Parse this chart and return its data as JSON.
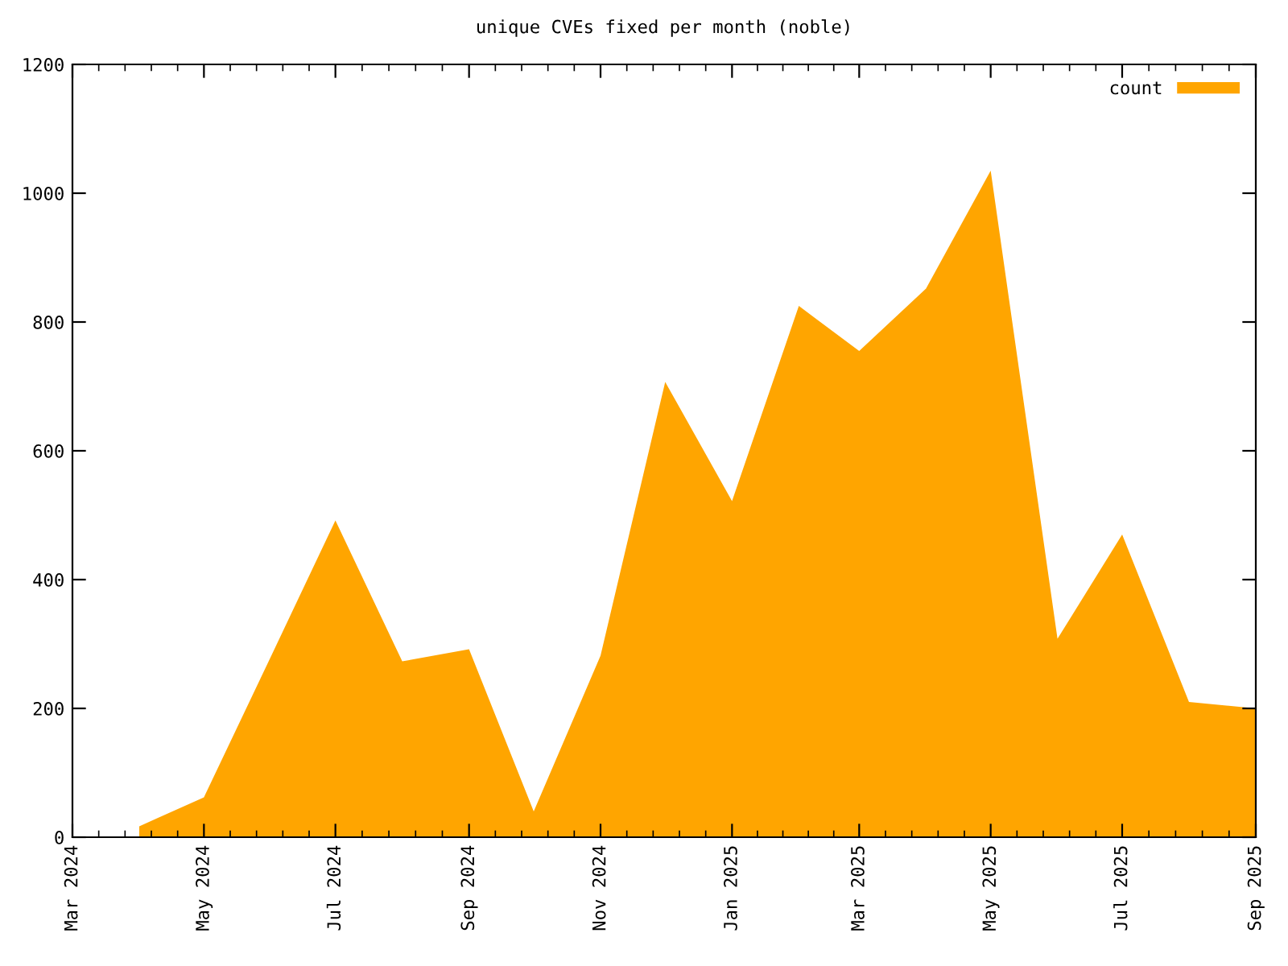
{
  "chart_data": {
    "type": "area",
    "title": "unique CVEs fixed per month (noble)",
    "x": [
      "2024-04",
      "2024-05",
      "2024-06",
      "2024-07",
      "2024-08",
      "2024-09",
      "2024-10",
      "2024-11",
      "2024-12",
      "2025-01",
      "2025-02",
      "2025-03",
      "2025-04",
      "2025-05",
      "2025-06",
      "2025-07",
      "2025-08",
      "2025-09"
    ],
    "series": [
      {
        "name": "count",
        "color": "#ffa500",
        "values": [
          17,
          62,
          280,
          492,
          273,
          292,
          40,
          282,
          707,
          522,
          825,
          755,
          852,
          1035,
          308,
          470,
          210,
          200
        ]
      }
    ],
    "xlim": [
      "2024-03",
      "2025-09"
    ],
    "xticks": [
      {
        "value": "2024-03",
        "label": "Mar 2024"
      },
      {
        "value": "2024-05",
        "label": "May 2024"
      },
      {
        "value": "2024-07",
        "label": "Jul 2024"
      },
      {
        "value": "2024-09",
        "label": "Sep 2024"
      },
      {
        "value": "2024-11",
        "label": "Nov 2024"
      },
      {
        "value": "2025-01",
        "label": "Jan 2025"
      },
      {
        "value": "2025-03",
        "label": "Mar 2025"
      },
      {
        "value": "2025-05",
        "label": "May 2025"
      },
      {
        "value": "2025-07",
        "label": "Jul 2025"
      },
      {
        "value": "2025-09",
        "label": "Sep 2025"
      }
    ],
    "ylim": [
      0,
      1200
    ],
    "yticks": [
      0,
      200,
      400,
      600,
      800,
      1000,
      1200
    ],
    "legend": "top right",
    "grid": false
  }
}
